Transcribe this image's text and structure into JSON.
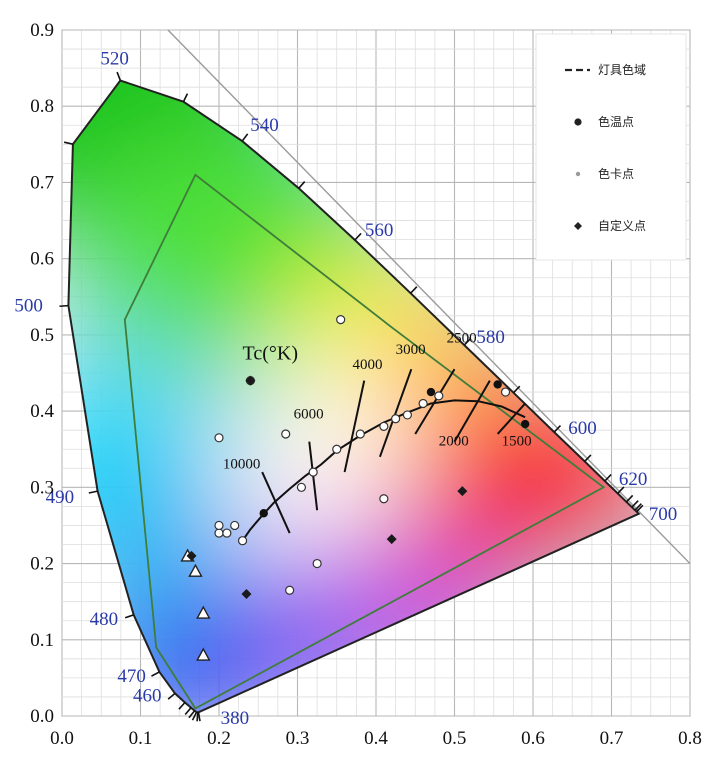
{
  "chart_data": {
    "type": "scatter",
    "title": "",
    "xlabel": "",
    "ylabel": "",
    "xlim": [
      0.0,
      0.8
    ],
    "ylim": [
      0.0,
      0.9
    ],
    "x_ticks": [
      "0.0",
      "0.1",
      "0.2",
      "0.3",
      "0.4",
      "0.5",
      "0.6",
      "0.7",
      "0.8"
    ],
    "y_ticks": [
      "0.0",
      "0.1",
      "0.2",
      "0.3",
      "0.4",
      "0.5",
      "0.6",
      "0.7",
      "0.8",
      "0.9"
    ],
    "grid": true,
    "legend_position": "top-right",
    "legend": [
      {
        "name": "灯具色域",
        "marker": "dashed-line",
        "color": "#222222"
      },
      {
        "name": "色温点",
        "marker": "dot",
        "color": "#222222"
      },
      {
        "name": "色卡点",
        "marker": "small-dot",
        "color": "#9a9a9a"
      },
      {
        "name": "自定义点",
        "marker": "diamond",
        "color": "#222222"
      }
    ],
    "spectral_locus": [
      [
        0.1741,
        0.005
      ],
      [
        0.1738,
        0.0049
      ],
      [
        0.173,
        0.0048
      ],
      [
        0.1714,
        0.0051
      ],
      [
        0.1689,
        0.0069
      ],
      [
        0.1644,
        0.0109
      ],
      [
        0.1566,
        0.0177
      ],
      [
        0.144,
        0.0297
      ],
      [
        0.1241,
        0.0578
      ],
      [
        0.0913,
        0.1327
      ],
      [
        0.0454,
        0.295
      ],
      [
        0.0082,
        0.5384
      ],
      [
        0.0139,
        0.7502
      ],
      [
        0.0743,
        0.8338
      ],
      [
        0.1547,
        0.8059
      ],
      [
        0.2296,
        0.7543
      ],
      [
        0.3016,
        0.6923
      ],
      [
        0.3731,
        0.6245
      ],
      [
        0.4441,
        0.5547
      ],
      [
        0.5125,
        0.4866
      ],
      [
        0.5752,
        0.4242
      ],
      [
        0.627,
        0.3725
      ],
      [
        0.6658,
        0.334
      ],
      [
        0.6915,
        0.3083
      ],
      [
        0.7079,
        0.292
      ],
      [
        0.719,
        0.2809
      ],
      [
        0.726,
        0.274
      ],
      [
        0.73,
        0.27
      ],
      [
        0.732,
        0.268
      ],
      [
        0.7347,
        0.2653
      ]
    ],
    "wavelength_labels": [
      {
        "text": "520",
        "x": 0.0743,
        "y": 0.8338
      },
      {
        "text": "540",
        "x": 0.2296,
        "y": 0.7543
      },
      {
        "text": "560",
        "x": 0.3731,
        "y": 0.6245
      },
      {
        "text": "580",
        "x": 0.5125,
        "y": 0.4866
      },
      {
        "text": "600",
        "x": 0.627,
        "y": 0.3725
      },
      {
        "text": "620",
        "x": 0.6915,
        "y": 0.3083
      },
      {
        "text": "700",
        "x": 0.7347,
        "y": 0.2653
      },
      {
        "text": "500",
        "x": 0.0082,
        "y": 0.5384
      },
      {
        "text": "490",
        "x": 0.0454,
        "y": 0.295
      },
      {
        "text": "480",
        "x": 0.0913,
        "y": 0.1327
      },
      {
        "text": "470",
        "x": 0.1241,
        "y": 0.0578
      },
      {
        "text": "460",
        "x": 0.144,
        "y": 0.0297
      },
      {
        "text": "380",
        "x": 0.1741,
        "y": 0.005
      }
    ],
    "fixture_gamut": [
      [
        0.08,
        0.52
      ],
      [
        0.17,
        0.71
      ],
      [
        0.42,
        0.51
      ],
      [
        0.69,
        0.3
      ],
      [
        0.17,
        0.01
      ],
      [
        0.12,
        0.09
      ]
    ],
    "planckian_locus": [
      [
        0.23,
        0.23
      ],
      [
        0.24,
        0.245
      ],
      [
        0.255,
        0.263
      ],
      [
        0.27,
        0.28
      ],
      [
        0.29,
        0.298
      ],
      [
        0.31,
        0.315
      ],
      [
        0.33,
        0.33
      ],
      [
        0.35,
        0.348
      ],
      [
        0.38,
        0.368
      ],
      [
        0.41,
        0.385
      ],
      [
        0.44,
        0.398
      ],
      [
        0.47,
        0.41
      ],
      [
        0.5,
        0.414
      ],
      [
        0.53,
        0.413
      ],
      [
        0.56,
        0.406
      ],
      [
        0.59,
        0.392
      ]
    ],
    "cct_labels": [
      {
        "text": "10000",
        "x": 0.205,
        "y": 0.325
      },
      {
        "text": "6000",
        "x": 0.295,
        "y": 0.39
      },
      {
        "text": "4000",
        "x": 0.37,
        "y": 0.455
      },
      {
        "text": "3000",
        "x": 0.425,
        "y": 0.475
      },
      {
        "text": "2500",
        "x": 0.49,
        "y": 0.49
      },
      {
        "text": "2000",
        "x": 0.48,
        "y": 0.355
      },
      {
        "text": "1500",
        "x": 0.56,
        "y": 0.355
      }
    ],
    "iso_temperature_lines": [
      [
        [
          0.255,
          0.32
        ],
        [
          0.29,
          0.24
        ]
      ],
      [
        [
          0.315,
          0.36
        ],
        [
          0.325,
          0.27
        ]
      ],
      [
        [
          0.385,
          0.44
        ],
        [
          0.36,
          0.32
        ]
      ],
      [
        [
          0.445,
          0.455
        ],
        [
          0.405,
          0.34
        ]
      ],
      [
        [
          0.5,
          0.455
        ],
        [
          0.45,
          0.37
        ]
      ],
      [
        [
          0.545,
          0.44
        ],
        [
          0.5,
          0.36
        ]
      ],
      [
        [
          0.59,
          0.41
        ],
        [
          0.555,
          0.37
        ]
      ]
    ],
    "tc_label": {
      "text": "Tc(°K)",
      "x": 0.23,
      "y": 0.468
    },
    "cct_points": [
      [
        0.257,
        0.266
      ],
      [
        0.47,
        0.425
      ],
      [
        0.555,
        0.435
      ],
      [
        0.59,
        0.383
      ]
    ],
    "color_card_points": [
      [
        0.24,
        0.44
      ],
      [
        0.2,
        0.365
      ],
      [
        0.285,
        0.37
      ],
      [
        0.355,
        0.52
      ],
      [
        0.305,
        0.3
      ],
      [
        0.32,
        0.32
      ],
      [
        0.35,
        0.35
      ],
      [
        0.38,
        0.37
      ],
      [
        0.41,
        0.38
      ],
      [
        0.44,
        0.395
      ],
      [
        0.46,
        0.41
      ],
      [
        0.48,
        0.42
      ],
      [
        0.41,
        0.285
      ],
      [
        0.2,
        0.24
      ],
      [
        0.23,
        0.23
      ],
      [
        0.2,
        0.25
      ],
      [
        0.21,
        0.24
      ],
      [
        0.22,
        0.25
      ],
      [
        0.565,
        0.425
      ],
      [
        0.29,
        0.165
      ],
      [
        0.325,
        0.2
      ],
      [
        0.425,
        0.39
      ]
    ],
    "triangle_points": [
      [
        0.17,
        0.19
      ],
      [
        0.18,
        0.135
      ],
      [
        0.18,
        0.08
      ],
      [
        0.16,
        0.21
      ]
    ],
    "custom_points": [
      [
        0.24,
        0.44
      ],
      [
        0.51,
        0.295
      ],
      [
        0.42,
        0.232
      ],
      [
        0.235,
        0.16
      ],
      [
        0.165,
        0.21
      ]
    ]
  }
}
